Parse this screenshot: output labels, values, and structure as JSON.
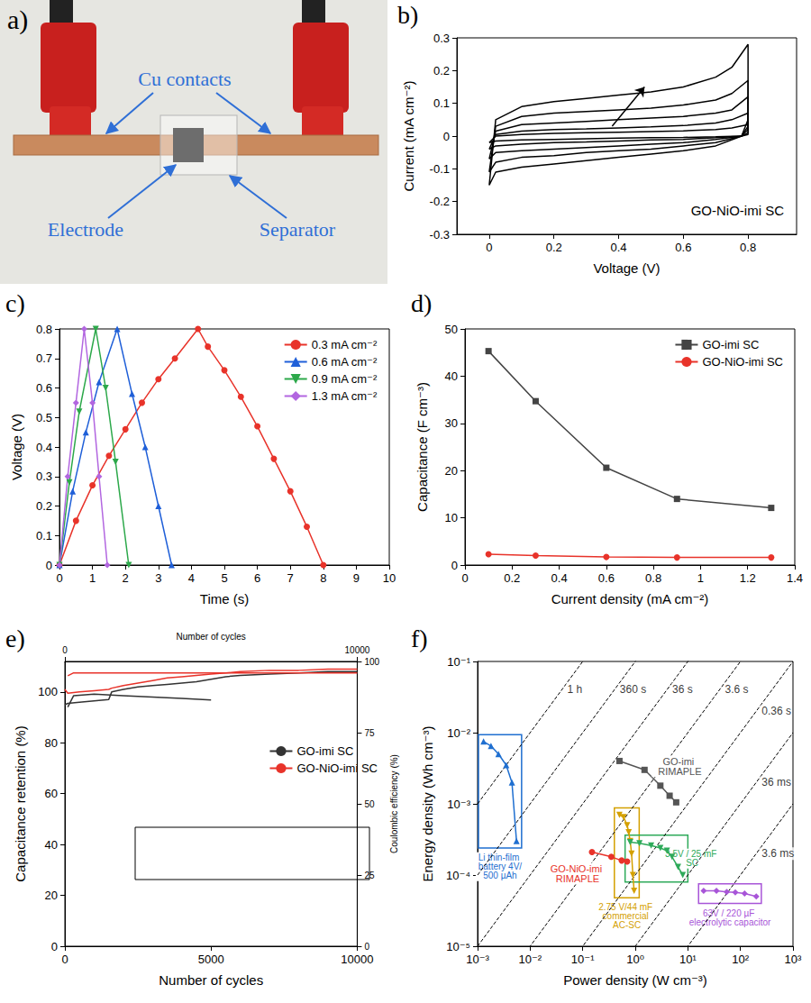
{
  "photo": {
    "panel": "a)",
    "labels": [
      "Cu contacts",
      "Electrode",
      "Separator"
    ]
  },
  "chart_data": [
    {
      "panel": "b)",
      "type": "line",
      "xlabel": "Voltage (V)",
      "ylabel": "Current (mA cm⁻²)",
      "annotation": "GO-NiO-imi SC",
      "arrow": {
        "x": [
          0.38,
          0.48
        ],
        "y": [
          0.03,
          0.15
        ]
      },
      "xlim": [
        -0.1,
        0.95
      ],
      "xticks": [
        0,
        0.2,
        0.4,
        0.6,
        0.8
      ],
      "ylim": [
        -0.3,
        0.3
      ],
      "yticks": [
        -0.3,
        -0.2,
        -0.1,
        0,
        0.1,
        0.2,
        0.3
      ],
      "grid": false,
      "x": [
        0,
        0.02,
        0.1,
        0.2,
        0.3,
        0.4,
        0.5,
        0.6,
        0.7,
        0.75,
        0.8,
        0.8,
        0.78,
        0.7,
        0.6,
        0.5,
        0.4,
        0.3,
        0.2,
        0.1,
        0.02,
        0
      ],
      "series": [
        {
          "color": "#000000",
          "values": [
            -0.15,
            0.05,
            0.09,
            0.105,
            0.115,
            0.125,
            0.135,
            0.15,
            0.18,
            0.21,
            0.28,
            0.05,
            0,
            -0.03,
            -0.045,
            -0.055,
            -0.065,
            -0.075,
            -0.085,
            -0.095,
            -0.11,
            -0.15
          ]
        },
        {
          "color": "#000000",
          "values": [
            -0.11,
            0.03,
            0.06,
            0.07,
            0.075,
            0.08,
            0.085,
            0.095,
            0.11,
            0.13,
            0.17,
            0.03,
            0,
            -0.02,
            -0.03,
            -0.04,
            -0.045,
            -0.05,
            -0.06,
            -0.065,
            -0.08,
            -0.11
          ]
        },
        {
          "color": "#000000",
          "values": [
            -0.07,
            0.015,
            0.035,
            0.04,
            0.045,
            0.05,
            0.055,
            0.06,
            0.07,
            0.08,
            0.12,
            0.02,
            0,
            -0.01,
            -0.02,
            -0.025,
            -0.03,
            -0.035,
            -0.04,
            -0.045,
            -0.05,
            -0.07
          ]
        },
        {
          "color": "#000000",
          "values": [
            -0.04,
            0.005,
            0.015,
            0.02,
            0.022,
            0.025,
            0.028,
            0.032,
            0.04,
            0.05,
            0.07,
            0.01,
            0,
            -0.005,
            -0.01,
            -0.012,
            -0.015,
            -0.018,
            -0.02,
            -0.025,
            -0.03,
            -0.04
          ]
        },
        {
          "color": "#000000",
          "values": [
            -0.02,
            0,
            0.005,
            0.008,
            0.01,
            0.012,
            0.014,
            0.016,
            0.02,
            0.025,
            0.035,
            0.005,
            0,
            -0.002,
            -0.004,
            -0.005,
            -0.006,
            -0.008,
            -0.01,
            -0.012,
            -0.015,
            -0.02
          ]
        }
      ]
    },
    {
      "panel": "c)",
      "type": "line",
      "xlabel": "Time (s)",
      "ylabel": "Voltage (V)",
      "xlim": [
        0,
        10
      ],
      "xticks": [
        0,
        1,
        2,
        3,
        4,
        5,
        6,
        7,
        8,
        9,
        10
      ],
      "ylim": [
        0,
        0.8
      ],
      "yticks": [
        0,
        0.1,
        0.2,
        0.3,
        0.4,
        0.5,
        0.6,
        0.7,
        0.8
      ],
      "legend": "upper right",
      "grid": false,
      "series": [
        {
          "name": "0.3 mA cm⁻²",
          "color": "#e8332a",
          "marker": "circle",
          "x": [
            0,
            0.5,
            1,
            1.5,
            2,
            2.5,
            3,
            3.5,
            4.2,
            4.5,
            5,
            5.5,
            6,
            6.5,
            7,
            7.5,
            8
          ],
          "values": [
            0,
            0.15,
            0.27,
            0.37,
            0.46,
            0.55,
            0.63,
            0.7,
            0.8,
            0.74,
            0.66,
            0.57,
            0.47,
            0.36,
            0.25,
            0.13,
            0
          ]
        },
        {
          "name": "0.6 mA cm⁻²",
          "color": "#1f5fd8",
          "marker": "triangle",
          "x": [
            0,
            0.4,
            0.8,
            1.2,
            1.75,
            2.2,
            2.6,
            3.0,
            3.4
          ],
          "values": [
            0,
            0.25,
            0.45,
            0.62,
            0.8,
            0.58,
            0.4,
            0.2,
            0
          ]
        },
        {
          "name": "0.9 mA cm⁻²",
          "color": "#2ca84a",
          "marker": "triangle-down",
          "x": [
            0,
            0.3,
            0.6,
            1.1,
            1.4,
            1.7,
            2.1
          ],
          "values": [
            0,
            0.28,
            0.52,
            0.8,
            0.6,
            0.35,
            0
          ]
        },
        {
          "name": "1.3 mA cm⁻²",
          "color": "#b266e0",
          "marker": "diamond",
          "x": [
            0,
            0.25,
            0.5,
            0.75,
            1.0,
            1.2,
            1.45
          ],
          "values": [
            0,
            0.3,
            0.55,
            0.8,
            0.55,
            0.3,
            0
          ]
        }
      ]
    },
    {
      "panel": "d)",
      "type": "line",
      "xlabel": "Current density (mA cm⁻²)",
      "ylabel": "Capacitance (F cm⁻³)",
      "xlim": [
        0,
        1.4
      ],
      "xticks": [
        0,
        0.2,
        0.4,
        0.6,
        0.8,
        1.0,
        1.2,
        1.4
      ],
      "ylim": [
        0,
        50
      ],
      "yticks": [
        0,
        10,
        20,
        30,
        40,
        50
      ],
      "legend": "upper right",
      "grid": false,
      "x": [
        0.1,
        0.3,
        0.6,
        0.9,
        1.3
      ],
      "series": [
        {
          "name": "GO-imi SC",
          "color": "#444444",
          "marker": "square",
          "values": [
            45.3,
            34.7,
            20.6,
            14,
            12.1
          ]
        },
        {
          "name": "GO-NiO-imi SC",
          "color": "#e8332a",
          "marker": "circle",
          "values": [
            2.3,
            2.0,
            1.7,
            1.6,
            1.6
          ]
        }
      ]
    },
    {
      "panel": "e)",
      "type": "line",
      "xlabel": "Number of cycles",
      "ylabel": "Capacitance retention (%)",
      "xlim": [
        0,
        10000
      ],
      "xticks": [
        0,
        5000,
        10000
      ],
      "ylim": [
        0,
        112
      ],
      "yticks": [
        0,
        20,
        40,
        60,
        80,
        100
      ],
      "legend": "right",
      "grid": false,
      "x": [
        0,
        100,
        500,
        1000,
        1500,
        1600,
        2000,
        2500,
        3000,
        3500,
        4000,
        4500,
        5000,
        5500,
        6000,
        7000,
        8000,
        9000,
        10000
      ],
      "series": [
        {
          "name": "GO-imi SC",
          "color": "#333333",
          "values": [
            95,
            95.5,
            96,
            96.5,
            97,
            100,
            101,
            102,
            102.5,
            103,
            103.5,
            104,
            105,
            106,
            106.5,
            107,
            107.5,
            108,
            108
          ]
        },
        {
          "name": "GO-NiO-imi SC",
          "color": "#e8332a",
          "values": [
            101,
            99.5,
            100,
            100.5,
            101,
            101.5,
            102.5,
            103.5,
            104.5,
            105.5,
            106,
            106.5,
            107,
            107.5,
            108,
            108.5,
            108.5,
            109,
            109
          ]
        }
      ],
      "inset": {
        "type": "line",
        "xlabel": "Number of cycles",
        "ylabel": "Coulombic efficiency (%)",
        "xlim": [
          0,
          10000
        ],
        "xticks": [
          0,
          10000
        ],
        "ylim": [
          0,
          100
        ],
        "yticks": [
          0,
          25,
          50,
          75,
          100
        ],
        "grid": false,
        "series": [
          {
            "color": "#333333",
            "x": [
              100,
              300,
              1000,
              2000,
              3000,
              4000,
              5000
            ],
            "values": [
              84,
              88,
              88.5,
              88,
              87.5,
              87,
              86.5
            ]
          },
          {
            "color": "#e8332a",
            "x": [
              100,
              300,
              1000,
              3000,
              5000,
              7000,
              10000
            ],
            "values": [
              95,
              96,
              96,
              96,
              96,
              96,
              96
            ]
          }
        ]
      }
    },
    {
      "panel": "f)",
      "type": "line",
      "log": true,
      "xlabel": "Power density (W cm⁻³)",
      "ylabel": "Energy density (Wh cm⁻³)",
      "xlim": [
        0.001,
        1000
      ],
      "xticks": [
        {
          "value": 0.001,
          "label": "10⁻³"
        },
        {
          "value": 0.01,
          "label": "10⁻²"
        },
        {
          "value": 0.1,
          "label": "10⁻¹"
        },
        {
          "value": 1,
          "label": "10⁰"
        },
        {
          "value": 10,
          "label": "10¹"
        },
        {
          "value": 100,
          "label": "10²"
        },
        {
          "value": 1000,
          "label": "10³"
        }
      ],
      "ylim": [
        1e-05,
        0.1
      ],
      "yticks": [
        {
          "value": 1e-05,
          "label": "10⁻⁵"
        },
        {
          "value": 0.0001,
          "label": "10⁻⁴"
        },
        {
          "value": 0.001,
          "label": "10⁻³"
        },
        {
          "value": 0.01,
          "label": "10⁻²"
        },
        {
          "value": 0.1,
          "label": "10⁻¹"
        }
      ],
      "grid": false,
      "time_lines": [
        {
          "label": "1 h",
          "hours": 1
        },
        {
          "label": "360 s",
          "hours": 0.1
        },
        {
          "label": "36 s",
          "hours": 0.01
        },
        {
          "label": "3.6 s",
          "hours": 0.001
        },
        {
          "label": "0.36 s",
          "hours": 0.0001
        },
        {
          "label": "36 ms",
          "hours": 1e-05
        },
        {
          "label": "3.6 ms",
          "hours": 1e-06
        }
      ],
      "series": [
        {
          "name": "GO-imi RIMAPLE",
          "color": "#555555",
          "marker": "square",
          "x": [
            0.5,
            1.5,
            3,
            4.5,
            6
          ],
          "values": [
            0.004,
            0.003,
            0.0018,
            0.0013,
            0.00105
          ]
        },
        {
          "name": "GO-NiO-imi RIMAPLE",
          "color": "#e8332a",
          "marker": "circle",
          "x": [
            0.15,
            0.35,
            0.55,
            0.7
          ],
          "values": [
            0.00021,
            0.00018,
            0.00016,
            0.000155
          ]
        }
      ],
      "reference_devices": [
        {
          "name": "Li thin-film battery 4V/500 µAh",
          "color": "#1f6fd0",
          "marker": "triangle",
          "x": [
            0.0013,
            0.0018,
            0.0025,
            0.0035,
            0.0045,
            0.0055
          ],
          "values": [
            0.0075,
            0.0065,
            0.005,
            0.0035,
            0.002,
            0.0003
          ]
        },
        {
          "name": "2.75 V/44 mF commercial AC-SC",
          "color": "#d4a000",
          "marker": "triangle-down",
          "x": [
            0.5,
            0.6,
            0.7,
            0.75,
            0.8,
            0.85,
            0.9,
            0.95
          ],
          "values": [
            0.0007,
            0.00065,
            0.0005,
            0.0004,
            0.0003,
            0.0002,
            0.0001,
            6e-05
          ]
        },
        {
          "name": "3.5V / 25 mF SC",
          "color": "#2eaa5a",
          "marker": "triangle-down",
          "x": [
            0.8,
            1.2,
            2,
            3,
            4,
            5,
            6.5,
            8
          ],
          "values": [
            0.00029,
            0.00028,
            0.00026,
            0.00024,
            0.00022,
            0.00018,
            0.00013,
            0.0001
          ]
        },
        {
          "name": "63V / 220 µF electrolytic capacitor",
          "color": "#a855d8",
          "marker": "diamond",
          "x": [
            20,
            35,
            55,
            80,
            120,
            200
          ],
          "values": [
            6e-05,
            6e-05,
            5.8e-05,
            5.7e-05,
            5.5e-05,
            5e-05
          ]
        }
      ]
    }
  ]
}
